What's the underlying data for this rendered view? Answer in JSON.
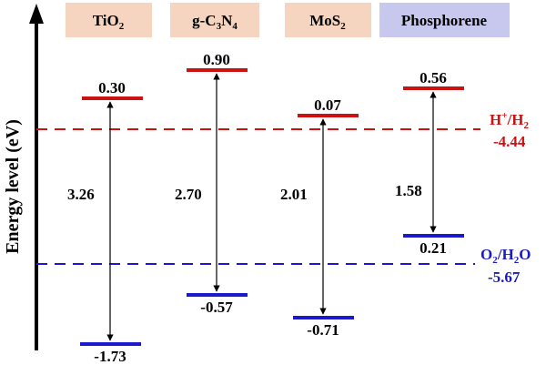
{
  "axis_label": "Energy level (eV)",
  "materials": [
    {
      "name": "TiO",
      "sub": "2",
      "name_after": "",
      "header_bg": "#f6d5c0",
      "cb": "0.30",
      "vb": "-1.73",
      "gap": "3.26"
    },
    {
      "name": "g-C",
      "sub": "3",
      "name_after": "N",
      "sub2": "4",
      "header_bg": "#f6d5c0",
      "cb": "0.90",
      "vb": "-0.57",
      "gap": "2.70"
    },
    {
      "name": "MoS",
      "sub": "2",
      "name_after": "",
      "header_bg": "#f6d5c0",
      "cb": "0.07",
      "vb": "-0.71",
      "gap": "2.01"
    },
    {
      "name": "Phosphorene",
      "sub": "",
      "name_after": "",
      "header_bg": "#c8c8ef",
      "cb": "0.56",
      "vb": "0.21",
      "gap": "1.58"
    }
  ],
  "reference_lines": {
    "h": {
      "label_main": "H",
      "label_sup": "+",
      "label_mid": "/H",
      "label_sub": "2",
      "value": "-4.44",
      "color": "#cc1111"
    },
    "o": {
      "label_main": "O",
      "label_sub1": "2",
      "label_mid": "/H",
      "label_sub2": "2",
      "label_end": "O",
      "value": "-5.67",
      "color": "#1a1acc"
    }
  },
  "colors": {
    "cb_level": "#cc1111",
    "vb_level": "#1a1acc",
    "axis": "#000000"
  }
}
